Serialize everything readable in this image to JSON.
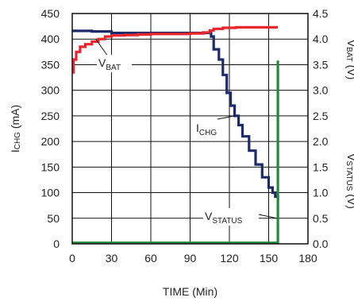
{
  "chart_data": {
    "type": "line",
    "xlabel": "TIME (Min)",
    "ylabel_left": {
      "main": "I",
      "sub": "CHG",
      "unit": " (mA)"
    },
    "ylabel_right_top": {
      "main": "V",
      "sub": "BAT",
      "unit": " (V)",
      "color": "#e8262b"
    },
    "ylabel_right_bottom": {
      "main": "V",
      "sub": "STATUS",
      "unit": " (V)",
      "color": "#1e8a3a"
    },
    "xlim": [
      0,
      180
    ],
    "ylim_left": [
      0,
      450
    ],
    "ylim_right": [
      0,
      4.5
    ],
    "x_ticks": [
      "0",
      "30",
      "60",
      "90",
      "120",
      "150",
      "180"
    ],
    "y_left_ticks": [
      "0",
      "50",
      "100",
      "150",
      "200",
      "250",
      "300",
      "350",
      "400",
      "450"
    ],
    "y_right_ticks": [
      "0.0",
      "0.5",
      "1.0",
      "1.5",
      "2.0",
      "2.5",
      "3.0",
      "3.5",
      "4.0",
      "4.5"
    ],
    "grid": true,
    "annotations": [
      {
        "main": "V",
        "sub": "BAT"
      },
      {
        "main": "I",
        "sub": "CHG"
      },
      {
        "main": "V",
        "sub": "STATUS"
      }
    ],
    "series": [
      {
        "name": "ICHG",
        "axis": "left",
        "color": "#1f2a6b",
        "x": [
          0,
          15,
          30,
          60,
          90,
          103,
          106,
          108,
          112,
          115,
          118,
          121,
          124,
          127,
          130,
          135,
          140,
          145,
          150,
          153,
          155,
          157
        ],
        "y": [
          416,
          415,
          412,
          412,
          412,
          412,
          405,
          380,
          360,
          330,
          295,
          270,
          250,
          232,
          210,
          182,
          155,
          130,
          110,
          100,
          92,
          86
        ]
      },
      {
        "name": "VBAT",
        "axis": "right",
        "color": "#e8262b",
        "x": [
          0,
          1,
          3,
          6,
          10,
          15,
          20,
          25,
          30,
          40,
          50,
          60,
          75,
          90,
          100,
          105,
          108,
          115,
          125,
          135,
          145,
          150,
          155,
          157
        ],
        "y": [
          3.35,
          3.6,
          3.75,
          3.85,
          3.9,
          3.95,
          4.0,
          4.05,
          4.07,
          4.08,
          4.09,
          4.1,
          4.1,
          4.11,
          4.13,
          4.17,
          4.2,
          4.22,
          4.23,
          4.23,
          4.23,
          4.23,
          4.23,
          4.23
        ]
      },
      {
        "name": "VSTATUS",
        "axis": "right",
        "color": "#1e8a3a",
        "x": [
          0,
          60,
          120,
          156.5,
          157,
          157
        ],
        "y": [
          0.02,
          0.02,
          0.02,
          0.02,
          3.58,
          3.58
        ]
      }
    ]
  }
}
